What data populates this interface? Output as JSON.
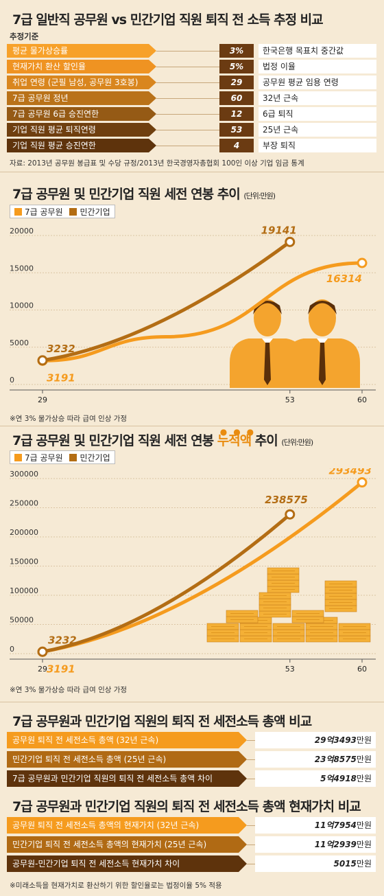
{
  "title": "7급 일반직 공무원 vs 민간기업 직원 퇴직 전 소득 추정 비교",
  "assumptions": {
    "heading": "추정기준",
    "rows": [
      {
        "label": "평균 물가상승률",
        "value": "3%",
        "desc": "한국은행 목표치 중간값"
      },
      {
        "label": "현재가치 환산 할인율",
        "value": "5%",
        "desc": "법정 이율"
      },
      {
        "label": "취업 연령 (군필 남성, 공무원 3호봉)",
        "value": "29",
        "desc": "공무원 평균 임용 연령"
      },
      {
        "label": "7급 공무원 정년",
        "value": "60",
        "desc": "32년 근속"
      },
      {
        "label": "7급 공무원 6급 승진연한",
        "value": "12",
        "desc": "6급 퇴직"
      },
      {
        "label": "기업 직원 평균 퇴직연령",
        "value": "53",
        "desc": "25년 근속"
      },
      {
        "label": "기업 직원 평균 승진연한",
        "value": "4",
        "desc": "부장 퇴직"
      }
    ],
    "source": "자료: 2013년 공무원 봉급표 및 수당 규정/2013년 한국경영자총협회 100인 이상 기업 임금 통계"
  },
  "colors": {
    "gov": "#f59b1e",
    "private": "#b36d14",
    "row_colors": [
      "#f7a12a",
      "#ef9322",
      "#d9861e",
      "#b97219",
      "#955a15",
      "#6f3f0f",
      "#5e330c"
    ],
    "accent_dot": "#e98c10",
    "people": "#f4a42e",
    "money": "#f4b036"
  },
  "chart1": {
    "title_main": "7급 공무원 및 민간기업 직원 세전 연봉 추이",
    "title_unit": "(단위:만원)",
    "note": "※연 3% 물가상승 따라 급여 인상 가정",
    "people_icon": "businessmen-silhouette"
  },
  "chart2": {
    "title_pre": "7급 공무원 및 민간기업 직원 세전 연봉 ",
    "title_accent": "누적액",
    "title_post": " 추이",
    "title_unit": "(단위:만원)",
    "note": "※연 3% 물가상승 따라 급여 인상 가정",
    "money_icon": "money-stacks"
  },
  "chart_data": [
    {
      "type": "line",
      "x_ticks": [
        29,
        53,
        60
      ],
      "y_ticks": [
        0,
        5000,
        10000,
        15000,
        20000
      ],
      "ylim": [
        0,
        20000
      ],
      "xlim": [
        29,
        60
      ],
      "series": [
        {
          "name": "7급 공무원",
          "points": [
            [
              29,
              3191
            ],
            [
              41,
              6400
            ],
            [
              60,
              16314
            ]
          ],
          "start_label": "3191",
          "end_label": "16314"
        },
        {
          "name": "민간기업",
          "points": [
            [
              29,
              3232
            ],
            [
              53,
              19141
            ]
          ],
          "start_label": "3232",
          "end_label": "19141"
        }
      ]
    },
    {
      "type": "line",
      "x_ticks": [
        29,
        53,
        60
      ],
      "y_ticks": [
        0,
        50000,
        100000,
        150000,
        200000,
        250000,
        300000
      ],
      "ylim": [
        0,
        300000
      ],
      "xlim": [
        29,
        60
      ],
      "series": [
        {
          "name": "7급 공무원",
          "points": [
            [
              29,
              3191
            ],
            [
              60,
              293493
            ]
          ],
          "start_label": "3191",
          "end_label": "293493"
        },
        {
          "name": "민간기업",
          "points": [
            [
              29,
              3232
            ],
            [
              53,
              238575
            ]
          ],
          "start_label": "3232",
          "end_label": "238575"
        }
      ]
    }
  ],
  "totals": {
    "title": "7급 공무원과 민간기업 직원의 퇴직 전 세전소득 총액 비교",
    "rows": [
      {
        "label": "공무원 퇴직 전 세전소득 총액 (32년 근속)",
        "value": "29억3493",
        "unit": "만원"
      },
      {
        "label": "민간기업 퇴직 전 세전소득 총액 (25년 근속)",
        "value": "23억8575",
        "unit": "만원"
      },
      {
        "label": "7급 공무원과 민간기업 직원의 퇴직 전 세전소득 총액 차이",
        "value": "5억4918",
        "unit": "만원"
      }
    ]
  },
  "present_value": {
    "title": "7급 공무원과 민간기업 직원의 퇴직 전 세전소득 총액 현재가치 비교",
    "rows": [
      {
        "label": "공무원 퇴직 전 세전소득 총액의 현재가치 (32년 근속)",
        "value": "11억7954",
        "unit": "만원"
      },
      {
        "label": "민간기업 퇴직 전 세전소득 총액의 현재가치 (25년 근속)",
        "value": "11억2939",
        "unit": "만원"
      },
      {
        "label": "공무원-민간기업 퇴직 전 세전소득 현재가치 차이",
        "value": "5015",
        "unit": "만원"
      }
    ],
    "note": "※미래소득을 현재가치로 환산하기 위한 할인율로는 법정이율 5% 적용"
  }
}
